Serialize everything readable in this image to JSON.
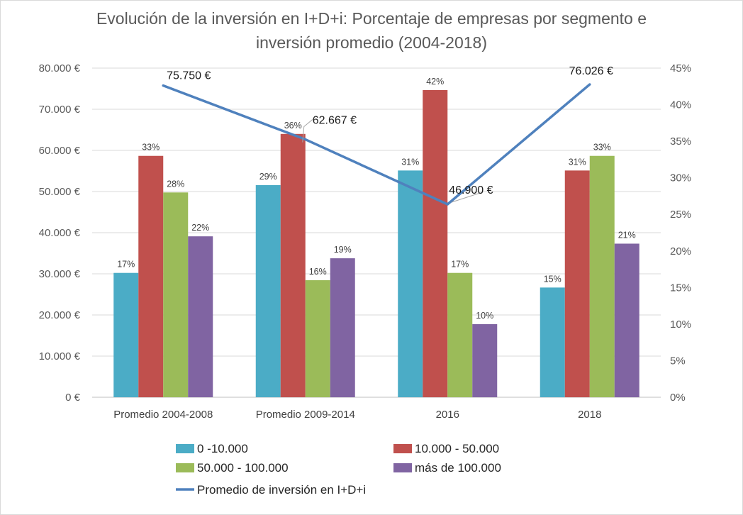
{
  "chart_data": {
    "type": "bar",
    "title_lines": [
      "Evolución de la inversión en I+D+i: Porcentaje de empresas por segmento e",
      "inversión promedio (2004-2018)"
    ],
    "categories": [
      "Promedio 2004-2008",
      "Promedio 2009-2014",
      "2016",
      "2018"
    ],
    "series": [
      {
        "name": "0 -10.000",
        "color": "#4bacc6",
        "values": [
          17,
          29,
          31,
          15
        ],
        "labels": [
          "17%",
          "29%",
          "31%",
          "15%"
        ]
      },
      {
        "name": "10.000 - 50.000",
        "color": "#c0504d",
        "values": [
          33,
          36,
          42,
          31
        ],
        "labels": [
          "33%",
          "36%",
          "42%",
          "31%"
        ]
      },
      {
        "name": "50.000 - 100.000",
        "color": "#9bbb59",
        "values": [
          28,
          16,
          17,
          33
        ],
        "labels": [
          "28%",
          "16%",
          "17%",
          "33%"
        ]
      },
      {
        "name": "más de 100.000",
        "color": "#8064a2",
        "values": [
          22,
          19,
          10,
          21
        ],
        "labels": [
          "22%",
          "19%",
          "10%",
          "21%"
        ]
      }
    ],
    "line": {
      "name": "Promedio de inversión en I+D+i",
      "color": "#4f81bd",
      "values": [
        75750,
        62667,
        46900,
        76026
      ],
      "labels": [
        "75.750 €",
        "62.667 €",
        "46.900 €",
        "76.026 €"
      ]
    },
    "y_left": {
      "min": 0,
      "max": 80000,
      "step": 10000,
      "tick_labels": [
        "0 €",
        "10.000 €",
        "20.000 €",
        "30.000 €",
        "40.000 €",
        "50.000 €",
        "60.000 €",
        "70.000 €",
        "80.000 €"
      ]
    },
    "y_right": {
      "min": 0,
      "max": 45,
      "step": 5,
      "tick_labels": [
        "0%",
        "5%",
        "10%",
        "15%",
        "20%",
        "25%",
        "30%",
        "35%",
        "40%",
        "45%"
      ]
    },
    "grid": true,
    "legend_position": "bottom"
  }
}
